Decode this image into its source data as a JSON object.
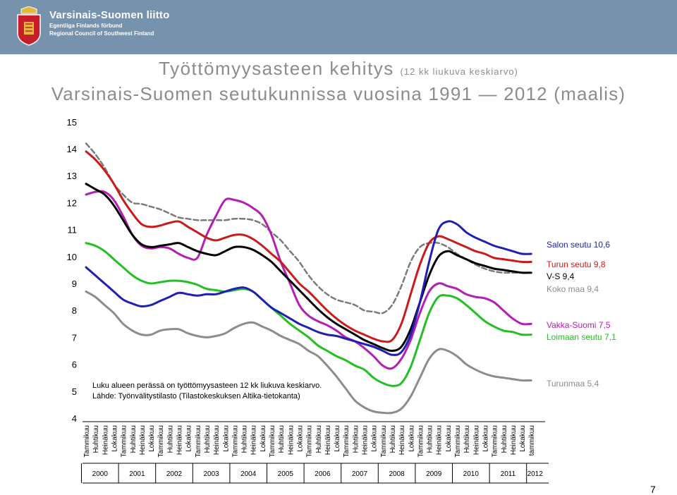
{
  "header": {
    "org_name": "Varsinais-Suomen liitto",
    "org_name_sv": "Egentliga Finlands förbund",
    "org_name_en": "Regional Council of Southwest Finland",
    "logo_icon": "coat-of-arms-shield-icon",
    "banner_color": "#7692ad"
  },
  "title": {
    "line1": "Työttömyysasteen kehitys",
    "line1_sub": "(12 kk liukuva keskiarvo)",
    "line2": "Varsinais-Suomen seutukunnissa vuosina 1991 — 2012 (maalis)"
  },
  "annotation": {
    "line1": "Luku alueen perässä on työttömyysasteen 12 kk liukuva keskiarvo.",
    "line2": "Lähde: Työnvälitystilasto (Tilastokeskuksen Altika-tietokanta)"
  },
  "page_number": "7",
  "chart_data": {
    "type": "line",
    "ylim": [
      4,
      15
    ],
    "yticks": [
      "4",
      "5",
      "6",
      "7",
      "8",
      "9",
      "10",
      "11",
      "12",
      "13",
      "14",
      "15"
    ],
    "x_month_labels": [
      "Tammikuu",
      "Huhtikuu",
      "Heinäkuu",
      "Lokakuu",
      "Tammikuu",
      "Huhtikuu",
      "Heinäkuu",
      "Lokakuu",
      "Tammikuu",
      "Huhtikuu",
      "Heinäkuu",
      "Lokakuu",
      "Tammikuu",
      "Huhtikuu",
      "Heinäkuu",
      "Lokakuu",
      "Tammikuu",
      "Huhtikuu",
      "Heinäkuu",
      "Lokakuu",
      "Tammikuu",
      "Huhtikuu",
      "Heinäkuu",
      "Lokakuu",
      "Tammikuu",
      "Huhtikuu",
      "Heinäkuu",
      "Lokakuu",
      "Tammikuu",
      "Huhtikuu",
      "Heinäkuu",
      "Lokakuu",
      "Tammikuu",
      "Huhtikuu",
      "Heinäkuu",
      "Lokakuu",
      "Tammikuu",
      "Huhtikuu",
      "Heinäkuu",
      "Lokakuu",
      "Tammikuu",
      "Huhtikuu",
      "Heinäkuu",
      "Lokakuu",
      "Tammikuu",
      "Huhtikuu",
      "Heinäkuu",
      "Lokakuu",
      "tammikuu"
    ],
    "x_year_labels": [
      "2000",
      "2001",
      "2002",
      "2003",
      "2004",
      "2005",
      "2006",
      "2007",
      "2008",
      "2009",
      "2010",
      "2011",
      "2012"
    ],
    "x": [
      0,
      1,
      2,
      3,
      4,
      5,
      6,
      7,
      8,
      9,
      10,
      11,
      12,
      13,
      14,
      15,
      16,
      17,
      18,
      19,
      20,
      21,
      22,
      23,
      24,
      25,
      26,
      27,
      28,
      29,
      30,
      31,
      32,
      33,
      34,
      35,
      36,
      37,
      38,
      39,
      40,
      41,
      42,
      43,
      44,
      45,
      46,
      47,
      48
    ],
    "series": [
      {
        "name": "Salon seutu 10,6",
        "label": "Salon seutu 10,6",
        "color": "#1f1fb5",
        "dash": false,
        "values": [
          9.6,
          9.3,
          9.0,
          8.7,
          8.4,
          8.25,
          8.15,
          8.2,
          8.35,
          8.5,
          8.65,
          8.6,
          8.55,
          8.6,
          8.6,
          8.7,
          8.8,
          8.85,
          8.7,
          8.4,
          8.1,
          7.9,
          7.7,
          7.5,
          7.35,
          7.2,
          7.1,
          7.05,
          6.95,
          6.85,
          6.75,
          6.65,
          6.5,
          6.35,
          6.45,
          7.1,
          8.3,
          9.8,
          11.0,
          11.3,
          11.2,
          10.9,
          10.7,
          10.55,
          10.4,
          10.3,
          10.2,
          10.1,
          10.1
        ]
      },
      {
        "name": "Turun seutu 9,8",
        "label": "Turun seutu 9,8",
        "color": "#cc1a1a",
        "dash": false,
        "values": [
          13.9,
          13.6,
          13.2,
          12.7,
          12.1,
          11.6,
          11.2,
          11.1,
          11.15,
          11.25,
          11.3,
          11.1,
          10.9,
          10.7,
          10.6,
          10.7,
          10.8,
          10.8,
          10.65,
          10.4,
          10.1,
          9.8,
          9.4,
          9.0,
          8.7,
          8.35,
          8.0,
          7.7,
          7.45,
          7.25,
          7.1,
          6.95,
          6.85,
          6.9,
          7.5,
          8.6,
          9.7,
          10.5,
          10.75,
          10.65,
          10.5,
          10.35,
          10.2,
          10.1,
          9.95,
          9.9,
          9.85,
          9.8,
          9.8
        ]
      },
      {
        "name": "V-S 9,4",
        "label": "V-S 9,4",
        "color": "#000000",
        "dash": false,
        "values": [
          12.7,
          12.5,
          12.3,
          11.9,
          11.35,
          10.8,
          10.45,
          10.35,
          10.4,
          10.45,
          10.5,
          10.35,
          10.2,
          10.1,
          10.05,
          10.2,
          10.35,
          10.35,
          10.25,
          10.05,
          9.8,
          9.45,
          9.1,
          8.75,
          8.4,
          8.05,
          7.75,
          7.5,
          7.3,
          7.1,
          6.9,
          6.75,
          6.6,
          6.5,
          6.65,
          7.3,
          8.3,
          9.3,
          10.0,
          10.2,
          10.05,
          9.9,
          9.75,
          9.65,
          9.55,
          9.5,
          9.45,
          9.4,
          9.4
        ]
      },
      {
        "name": "Koko maa 9,4",
        "label": "Koko maa 9,4",
        "color": "#7a7a7a",
        "dash": true,
        "values": [
          14.2,
          13.8,
          13.3,
          12.7,
          12.3,
          12.0,
          11.95,
          11.85,
          11.75,
          11.6,
          11.45,
          11.4,
          11.35,
          11.35,
          11.35,
          11.35,
          11.4,
          11.4,
          11.35,
          11.2,
          10.9,
          10.6,
          10.2,
          9.8,
          9.3,
          8.9,
          8.6,
          8.4,
          8.3,
          8.2,
          8.0,
          7.95,
          7.9,
          8.2,
          8.9,
          9.8,
          10.35,
          10.5,
          10.5,
          10.35,
          10.1,
          9.9,
          9.7,
          9.55,
          9.45,
          9.4,
          9.4,
          9.4,
          9.4
        ]
      },
      {
        "name": "Vakka-Suomi 7,5",
        "label": "Vakka-Suomi 7,5",
        "color": "#b31eb3",
        "dash": false,
        "values": [
          12.3,
          12.4,
          12.4,
          12.1,
          11.5,
          10.8,
          10.4,
          10.3,
          10.35,
          10.3,
          10.1,
          9.95,
          9.95,
          10.8,
          11.5,
          12.1,
          12.1,
          12.0,
          11.8,
          11.5,
          10.8,
          9.8,
          9.0,
          8.2,
          7.8,
          7.6,
          7.45,
          7.25,
          7.0,
          6.85,
          6.6,
          6.3,
          5.95,
          5.85,
          6.2,
          6.9,
          7.9,
          8.7,
          9.0,
          8.9,
          8.8,
          8.6,
          8.5,
          8.45,
          8.3,
          8.0,
          7.7,
          7.5,
          7.5
        ]
      },
      {
        "name": "Loimaan seutu 7,1",
        "label": "Loimaan seutu 7,1",
        "color": "#22c022",
        "dash": false,
        "values": [
          10.5,
          10.4,
          10.2,
          9.9,
          9.6,
          9.3,
          9.1,
          9.0,
          9.05,
          9.1,
          9.1,
          9.05,
          8.95,
          8.8,
          8.75,
          8.7,
          8.75,
          8.8,
          8.7,
          8.4,
          8.1,
          7.8,
          7.5,
          7.25,
          7.0,
          6.7,
          6.5,
          6.3,
          6.15,
          5.95,
          5.8,
          5.5,
          5.3,
          5.2,
          5.3,
          5.9,
          6.9,
          7.9,
          8.5,
          8.55,
          8.45,
          8.2,
          7.9,
          7.6,
          7.4,
          7.25,
          7.2,
          7.1,
          7.1
        ]
      },
      {
        "name": "Turunmaa 5,4",
        "label": "Turunmaa 5,4",
        "color": "#8c8c8c",
        "dash": false,
        "values": [
          8.7,
          8.5,
          8.2,
          7.9,
          7.5,
          7.25,
          7.1,
          7.1,
          7.25,
          7.3,
          7.3,
          7.15,
          7.05,
          7.0,
          7.05,
          7.15,
          7.35,
          7.5,
          7.55,
          7.4,
          7.25,
          7.05,
          6.9,
          6.75,
          6.5,
          6.3,
          5.95,
          5.55,
          5.1,
          4.65,
          4.4,
          4.25,
          4.2,
          4.2,
          4.35,
          4.8,
          5.5,
          6.2,
          6.55,
          6.5,
          6.3,
          6.0,
          5.8,
          5.65,
          5.55,
          5.5,
          5.45,
          5.4,
          5.4
        ]
      }
    ]
  }
}
